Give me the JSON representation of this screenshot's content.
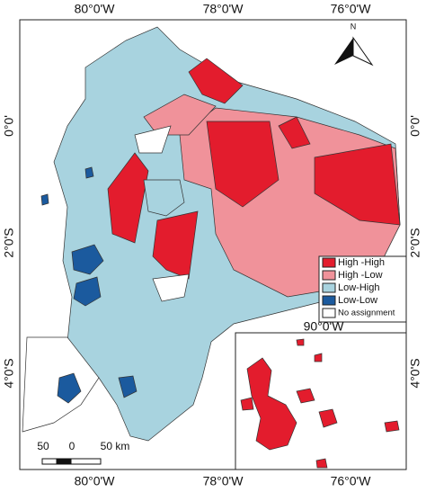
{
  "map": {
    "top_labels": [
      "80°0'W",
      "78°0'W",
      "76°0'W"
    ],
    "bottom_labels": [
      "80°0'W",
      "78°0'W",
      "76°0'W"
    ],
    "left_labels": [
      "0°0'",
      "2°0'S",
      "4°0'S"
    ],
    "right_labels": [
      "0°0'",
      "2°0'S",
      "4°0'S"
    ],
    "north": "N",
    "inset_label": "90°0'W",
    "scale_labels": [
      "50",
      "0",
      "50 km"
    ],
    "legend": [
      {
        "label": "High -High",
        "color": "#e31c2d"
      },
      {
        "label": "High -Low",
        "color": "#f0929a"
      },
      {
        "label": "Low-High",
        "color": "#a8d3df"
      },
      {
        "label": "Low-Low",
        "color": "#1b5a9e"
      },
      {
        "label": "No assignment",
        "color": "#ffffff"
      }
    ]
  }
}
